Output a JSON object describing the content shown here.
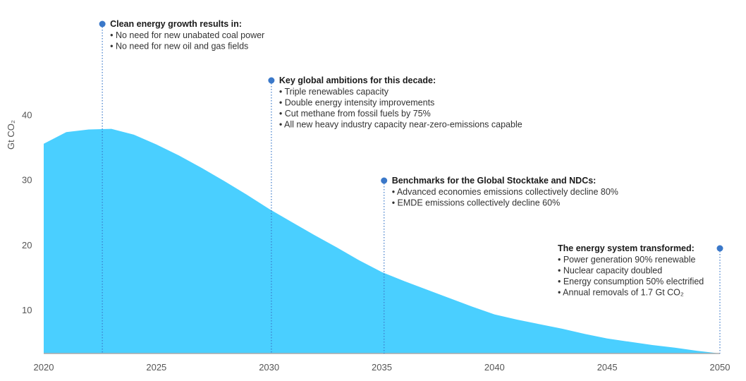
{
  "chart_data": {
    "type": "area",
    "title": "",
    "xlabel": "",
    "ylabel": "Gt CO₂",
    "xlim": [
      2020,
      2050
    ],
    "ylim": [
      3.3,
      42
    ],
    "grid": false,
    "x_ticks": [
      "2020",
      "2025",
      "2030",
      "2035",
      "2040",
      "2045",
      "2050"
    ],
    "y_ticks": [
      "10",
      "20",
      "30",
      "40"
    ],
    "colors": {
      "area": "#4acfff",
      "marker": "#3a78c9",
      "axis": "#aaaaaa"
    },
    "series": [
      {
        "x": [
          2020,
          2021,
          2022,
          2023,
          2024,
          2025,
          2026,
          2027,
          2028,
          2029,
          2030,
          2031,
          2032,
          2033,
          2034,
          2035,
          2036,
          2037,
          2038,
          2039,
          2040,
          2041,
          2042,
          2043,
          2044,
          2045,
          2046,
          2047,
          2048,
          2049,
          2050
        ],
        "values": [
          35.5,
          37.3,
          37.7,
          37.8,
          36.9,
          35.4,
          33.7,
          31.8,
          29.8,
          27.7,
          25.5,
          23.5,
          21.5,
          19.6,
          17.6,
          15.8,
          14.4,
          13.1,
          11.8,
          10.5,
          9.3,
          8.5,
          7.8,
          7.1,
          6.3,
          5.6,
          5.1,
          4.6,
          4.2,
          3.7,
          3.3
        ]
      }
    ],
    "annotations": [
      {
        "x": 2022.6,
        "title": "Clean energy growth results in:",
        "items": [
          "• No need for new unabated coal power",
          "• No need for new oil and gas fields"
        ]
      },
      {
        "x": 2030.1,
        "title": "Key global ambitions for this decade:",
        "items": [
          "• Triple renewables capacity",
          "• Double energy intensity improvements",
          "• Cut methane from fossil fuels by 75%",
          "• All new heavy industry capacity near-zero-emissions capable"
        ]
      },
      {
        "x": 2035.1,
        "title": "Benchmarks for the Global Stocktake and NDCs:",
        "items": [
          "• Advanced economies emissions collectively decline 80%",
          "• EMDE emissions collectively decline 60%"
        ]
      },
      {
        "x": 2050,
        "title": "The energy system transformed:",
        "items": [
          "• Power generation 90% renewable",
          "• Nuclear capacity doubled",
          "• Energy consumption 50% electrified",
          "• Annual removals of 1.7 Gt CO₂"
        ],
        "align": "left-of-marker"
      }
    ]
  }
}
